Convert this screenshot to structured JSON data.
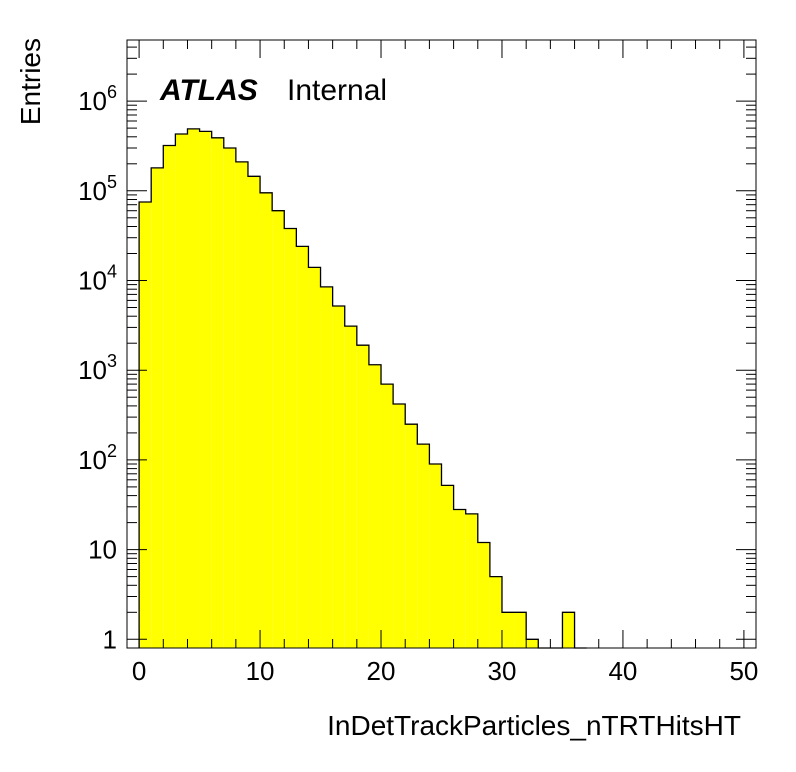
{
  "chart_data": {
    "type": "bar",
    "histogram": true,
    "xlabel": "InDetTrackParticles_nTRTHitsHT",
    "ylabel": "Entries",
    "annotation": {
      "bold": "ATLAS",
      "normal": "Internal"
    },
    "xlim": [
      -1,
      51
    ],
    "ylim": [
      0.8,
      4800000
    ],
    "log_y": true,
    "bar_color": "#ffff00",
    "edge_color": "#000000",
    "grid": false,
    "bin_width": 1,
    "x_tick_labels": [
      "0",
      "10",
      "20",
      "30",
      "40",
      "50"
    ],
    "x_tick_values": [
      0,
      10,
      20,
      30,
      40,
      50
    ],
    "y_ticks": [
      {
        "value": 1,
        "label": "1",
        "sup": ""
      },
      {
        "value": 10,
        "label": "10",
        "sup": ""
      },
      {
        "value": 100,
        "label": "10",
        "sup": "2"
      },
      {
        "value": 1000,
        "label": "10",
        "sup": "3"
      },
      {
        "value": 10000,
        "label": "10",
        "sup": "4"
      },
      {
        "value": 100000,
        "label": "10",
        "sup": "5"
      },
      {
        "value": 1000000,
        "label": "10",
        "sup": "6"
      }
    ],
    "bins": [
      {
        "x": 0,
        "y": 75000
      },
      {
        "x": 1,
        "y": 180000
      },
      {
        "x": 2,
        "y": 320000
      },
      {
        "x": 3,
        "y": 430000
      },
      {
        "x": 4,
        "y": 490000
      },
      {
        "x": 5,
        "y": 460000
      },
      {
        "x": 6,
        "y": 390000
      },
      {
        "x": 7,
        "y": 300000
      },
      {
        "x": 8,
        "y": 210000
      },
      {
        "x": 9,
        "y": 145000
      },
      {
        "x": 10,
        "y": 95000
      },
      {
        "x": 11,
        "y": 60000
      },
      {
        "x": 12,
        "y": 38000
      },
      {
        "x": 13,
        "y": 24000
      },
      {
        "x": 14,
        "y": 14000
      },
      {
        "x": 15,
        "y": 8500
      },
      {
        "x": 16,
        "y": 5200
      },
      {
        "x": 17,
        "y": 3100
      },
      {
        "x": 18,
        "y": 1900
      },
      {
        "x": 19,
        "y": 1150
      },
      {
        "x": 20,
        "y": 700
      },
      {
        "x": 21,
        "y": 420
      },
      {
        "x": 22,
        "y": 250
      },
      {
        "x": 23,
        "y": 150
      },
      {
        "x": 24,
        "y": 90
      },
      {
        "x": 25,
        "y": 52
      },
      {
        "x": 26,
        "y": 28
      },
      {
        "x": 27,
        "y": 25
      },
      {
        "x": 28,
        "y": 12
      },
      {
        "x": 29,
        "y": 5
      },
      {
        "x": 30,
        "y": 2
      },
      {
        "x": 31,
        "y": 2
      },
      {
        "x": 32,
        "y": 1
      },
      {
        "x": 33,
        "y": 0
      },
      {
        "x": 34,
        "y": 0
      },
      {
        "x": 35,
        "y": 2
      },
      {
        "x": 36,
        "y": 0
      }
    ]
  }
}
